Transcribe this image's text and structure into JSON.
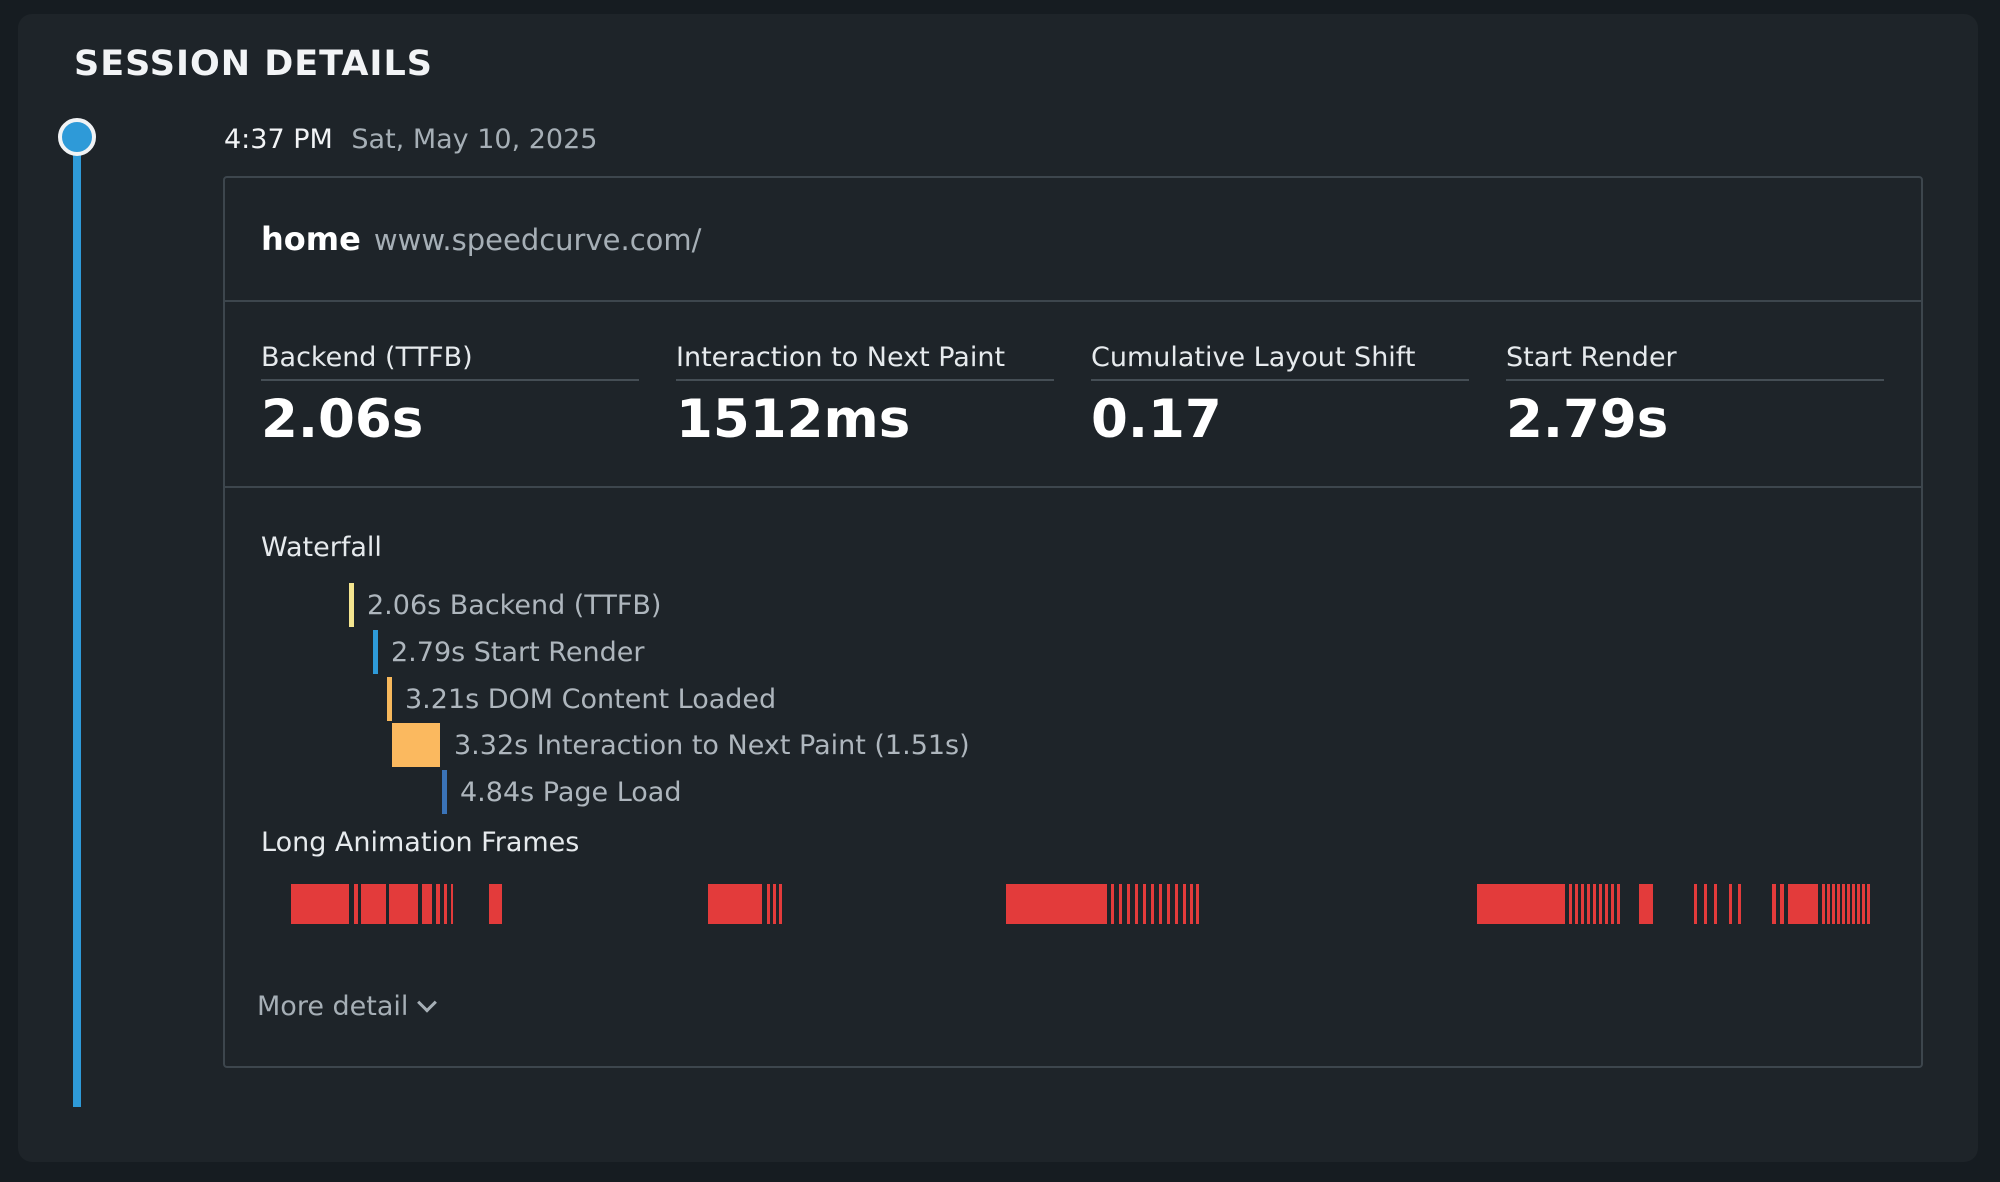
{
  "title": "SESSION DETAILS",
  "session": {
    "time": "4:37 PM",
    "date": "Sat, May 10, 2025"
  },
  "page": {
    "name": "home",
    "url": "www.speedcurve.com/"
  },
  "metrics": [
    {
      "label": "Backend (TTFB)",
      "value": "2.06s"
    },
    {
      "label": "Interaction to Next Paint",
      "value": "1512ms"
    },
    {
      "label": "Cumulative Layout Shift",
      "value": "0.17"
    },
    {
      "label": "Start Render",
      "value": "2.79s"
    }
  ],
  "waterfall": {
    "title": "Waterfall",
    "events": [
      {
        "label": "2.06s Backend (TTFB)",
        "time_s": 2.06,
        "color": "#f4e58f",
        "kind": "line"
      },
      {
        "label": "2.79s Start Render",
        "time_s": 2.79,
        "color": "#2e9ad8",
        "kind": "line"
      },
      {
        "label": "3.21s DOM Content Loaded",
        "time_s": 3.21,
        "color": "#f7b85c",
        "kind": "line"
      },
      {
        "label": "3.32s Interaction to Next Paint (1.51s)",
        "time_s": 3.32,
        "duration_s": 1.51,
        "color": "#fbb95f",
        "kind": "box"
      },
      {
        "label": "4.84s Page Load",
        "time_s": 4.84,
        "color": "#3a73b8",
        "kind": "line"
      }
    ]
  },
  "long_animation_frames": {
    "title": "Long Animation Frames",
    "color": "#e33b3b"
  },
  "more_detail_label": "More detail"
}
